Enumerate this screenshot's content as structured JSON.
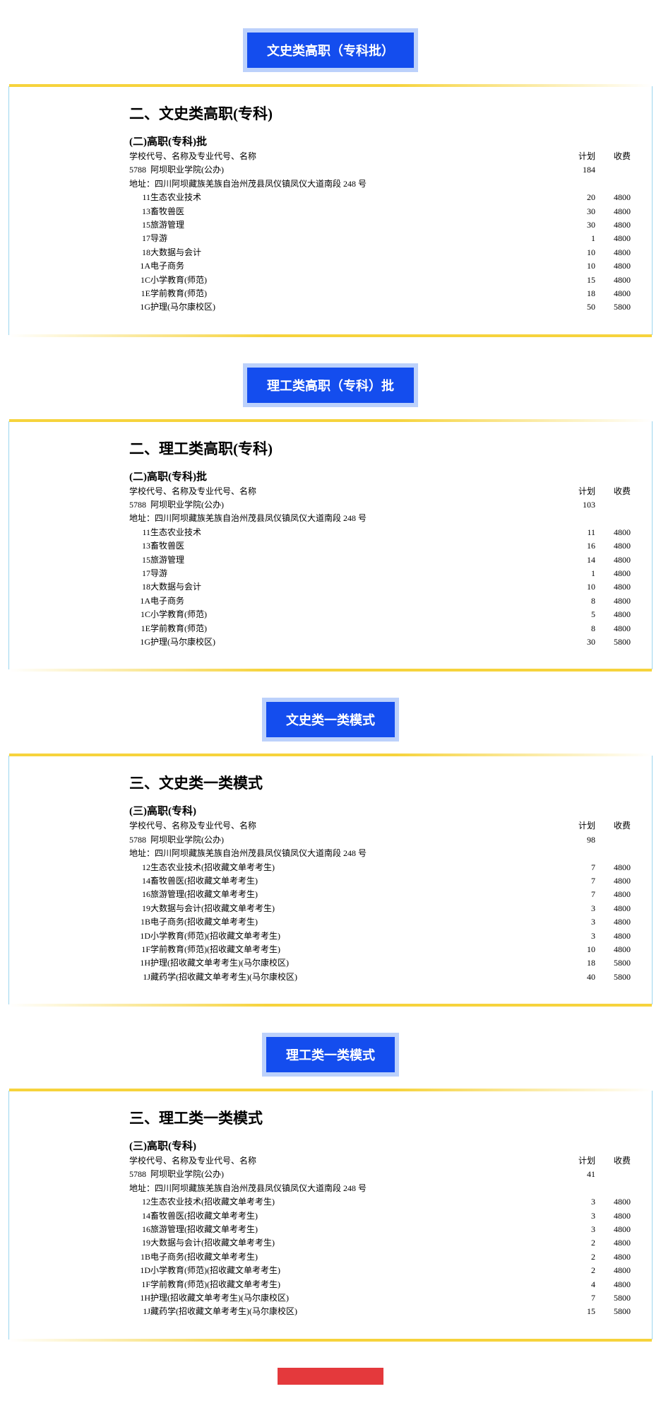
{
  "sections": [
    {
      "tab": "文史类高职（专科批）",
      "title": "二、文史类高职(专科)",
      "subtitle": "(二)高职(专科)批",
      "header_cols": [
        "学校代号、名称及专业代号、名称",
        "计划",
        "收费"
      ],
      "school_code": "5788",
      "school_name": "阿坝职业学院(公办)",
      "school_plan": "184",
      "address_label": "地址：",
      "address": "四川阿坝藏族羌族自治州茂县凤仪镇凤仪大道南段 248 号",
      "rows": [
        {
          "code": "11",
          "name": "生态农业技术",
          "plan": "20",
          "fee": "4800"
        },
        {
          "code": "13",
          "name": "畜牧兽医",
          "plan": "30",
          "fee": "4800"
        },
        {
          "code": "15",
          "name": "旅游管理",
          "plan": "30",
          "fee": "4800"
        },
        {
          "code": "17",
          "name": "导游",
          "plan": "1",
          "fee": "4800"
        },
        {
          "code": "18",
          "name": "大数据与会计",
          "plan": "10",
          "fee": "4800"
        },
        {
          "code": "1A",
          "name": "电子商务",
          "plan": "10",
          "fee": "4800"
        },
        {
          "code": "1C",
          "name": "小学教育(师范)",
          "plan": "15",
          "fee": "4800"
        },
        {
          "code": "1E",
          "name": "学前教育(师范)",
          "plan": "18",
          "fee": "4800"
        },
        {
          "code": "1G",
          "name": "护理(马尔康校区)",
          "plan": "50",
          "fee": "5800"
        }
      ]
    },
    {
      "tab": "理工类高职（专科）批",
      "title": "二、理工类高职(专科)",
      "subtitle": "(二)高职(专科)批",
      "header_cols": [
        "学校代号、名称及专业代号、名称",
        "计划",
        "收费"
      ],
      "school_code": "5788",
      "school_name": "阿坝职业学院(公办)",
      "school_plan": "103",
      "address_label": "地址：",
      "address": "四川阿坝藏族羌族自治州茂县凤仪镇凤仪大道南段 248 号",
      "rows": [
        {
          "code": "11",
          "name": "生态农业技术",
          "plan": "11",
          "fee": "4800"
        },
        {
          "code": "13",
          "name": "畜牧兽医",
          "plan": "16",
          "fee": "4800"
        },
        {
          "code": "15",
          "name": "旅游管理",
          "plan": "14",
          "fee": "4800"
        },
        {
          "code": "17",
          "name": "导游",
          "plan": "1",
          "fee": "4800"
        },
        {
          "code": "18",
          "name": "大数据与会计",
          "plan": "10",
          "fee": "4800"
        },
        {
          "code": "1A",
          "name": "电子商务",
          "plan": "8",
          "fee": "4800"
        },
        {
          "code": "1C",
          "name": "小学教育(师范)",
          "plan": "5",
          "fee": "4800"
        },
        {
          "code": "1E",
          "name": "学前教育(师范)",
          "plan": "8",
          "fee": "4800"
        },
        {
          "code": "1G",
          "name": "护理(马尔康校区)",
          "plan": "30",
          "fee": "5800"
        }
      ]
    },
    {
      "tab": "文史类一类模式",
      "title": "三、文史类一类模式",
      "subtitle": "(三)高职(专科)",
      "header_cols": [
        "学校代号、名称及专业代号、名称",
        "计划",
        "收费"
      ],
      "school_code": "5788",
      "school_name": "阿坝职业学院(公办)",
      "school_plan": "98",
      "address_label": "地址：",
      "address": "四川阿坝藏族羌族自治州茂县凤仪镇凤仪大道南段 248 号",
      "rows": [
        {
          "code": "12",
          "name": "生态农业技术(招收藏文单考考生)",
          "plan": "7",
          "fee": "4800"
        },
        {
          "code": "14",
          "name": "畜牧兽医(招收藏文单考考生)",
          "plan": "7",
          "fee": "4800"
        },
        {
          "code": "16",
          "name": "旅游管理(招收藏文单考考生)",
          "plan": "7",
          "fee": "4800"
        },
        {
          "code": "19",
          "name": "大数据与会计(招收藏文单考考生)",
          "plan": "3",
          "fee": "4800"
        },
        {
          "code": "1B",
          "name": "电子商务(招收藏文单考考生)",
          "plan": "3",
          "fee": "4800"
        },
        {
          "code": "1D",
          "name": "小学教育(师范)(招收藏文单考考生)",
          "plan": "3",
          "fee": "4800"
        },
        {
          "code": "1F",
          "name": "学前教育(师范)(招收藏文单考考生)",
          "plan": "10",
          "fee": "4800"
        },
        {
          "code": "1H",
          "name": "护理(招收藏文单考考生)(马尔康校区)",
          "plan": "18",
          "fee": "5800"
        },
        {
          "code": "1J",
          "name": "藏药学(招收藏文单考考生)(马尔康校区)",
          "plan": "40",
          "fee": "5800"
        }
      ]
    },
    {
      "tab": "理工类一类模式",
      "title": "三、理工类一类模式",
      "subtitle": "(三)高职(专科)",
      "header_cols": [
        "学校代号、名称及专业代号、名称",
        "计划",
        "收费"
      ],
      "school_code": "5788",
      "school_name": "阿坝职业学院(公办)",
      "school_plan": "41",
      "address_label": "地址：",
      "address": "四川阿坝藏族羌族自治州茂县凤仪镇凤仪大道南段 248 号",
      "rows": [
        {
          "code": "12",
          "name": "生态农业技术(招收藏文单考考生)",
          "plan": "3",
          "fee": "4800"
        },
        {
          "code": "14",
          "name": "畜牧兽医(招收藏文单考考生)",
          "plan": "3",
          "fee": "4800"
        },
        {
          "code": "16",
          "name": "旅游管理(招收藏文单考考生)",
          "plan": "3",
          "fee": "4800"
        },
        {
          "code": "19",
          "name": "大数据与会计(招收藏文单考考生)",
          "plan": "2",
          "fee": "4800"
        },
        {
          "code": "1B",
          "name": "电子商务(招收藏文单考考生)",
          "plan": "2",
          "fee": "4800"
        },
        {
          "code": "1D",
          "name": "小学教育(师范)(招收藏文单考考生)",
          "plan": "2",
          "fee": "4800"
        },
        {
          "code": "1F",
          "name": "学前教育(师范)(招收藏文单考考生)",
          "plan": "4",
          "fee": "4800"
        },
        {
          "code": "1H",
          "name": "护理(招收藏文单考考生)(马尔康校区)",
          "plan": "7",
          "fee": "5800"
        },
        {
          "code": "1J",
          "name": "藏药学(招收藏文单考考生)(马尔康校区)",
          "plan": "15",
          "fee": "5800"
        }
      ]
    }
  ]
}
